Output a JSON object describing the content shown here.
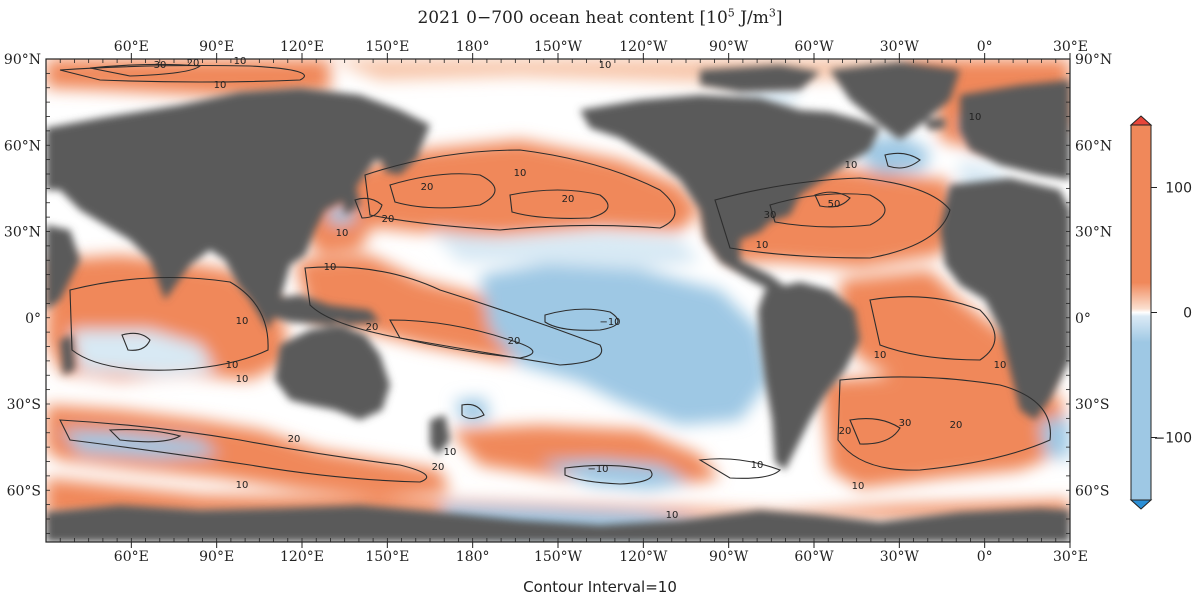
{
  "title": {
    "text": "2021 0−700 ocean heat content [10",
    "exp1": "5",
    "unit": " J/m",
    "exp2": "3",
    "close": "]"
  },
  "footer": "Contour Interval=10",
  "colors": {
    "land": "#5a5a5a",
    "warm": "#f0885a",
    "warm_light": "#f7c4a7",
    "cool": "#9ec8e4",
    "cool_light": "#d8e9f4",
    "neutral": "#ffffff",
    "contour": "#2d2d2d"
  },
  "map": {
    "lon_labels": [
      "60°E",
      "90°E",
      "120°E",
      "150°E",
      "180°",
      "150°W",
      "120°W",
      "90°W",
      "60°W",
      "30°W",
      "0°",
      "30°E"
    ],
    "lat_labels": [
      "90°N",
      "60°N",
      "30°N",
      "0°",
      "30°S",
      "60°S"
    ],
    "projection": "plate-carree",
    "lon_range": [
      30,
      390
    ],
    "lat_range": [
      -78,
      90
    ]
  },
  "colorbar": {
    "ticks": [
      "100",
      "0",
      "−100"
    ],
    "tick_values": [
      100,
      0,
      -100
    ],
    "range": [
      -150,
      150
    ],
    "extend": "both"
  },
  "contour_labels": {
    "ten": "10",
    "twenty": "20",
    "thirty": "30",
    "fifty": "50",
    "minus_ten": "−10"
  }
}
